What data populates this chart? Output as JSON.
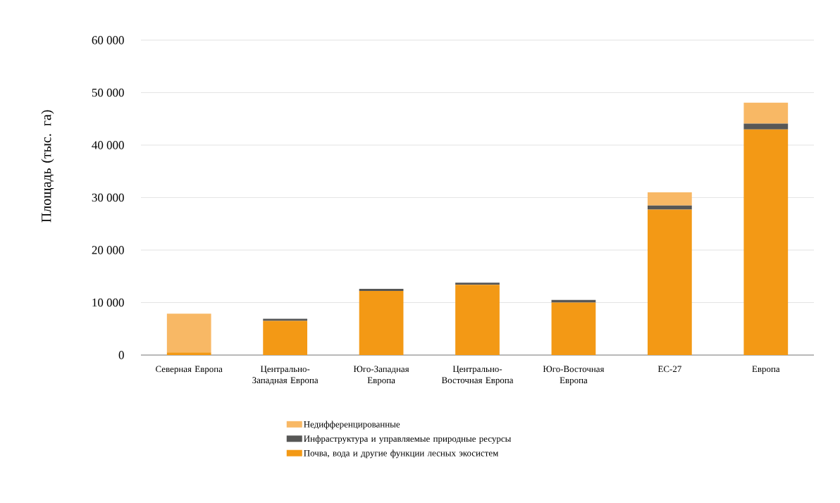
{
  "chart_data": {
    "type": "bar",
    "stacked": true,
    "ylabel": "Площадь (тыс. га)",
    "categories": [
      "Северная Европа",
      "Центрально-Западная Европа",
      "Юго-Западная Европа",
      "Центрально-Восточная Европа",
      "Юго-Восточная Европа",
      "ЕС-27",
      "Европа"
    ],
    "series": [
      {
        "name": "Почва, вода и другие функции лесных экосистем",
        "color": "#f39915",
        "values": [
          500,
          6500,
          12200,
          13400,
          10000,
          27700,
          43000
        ]
      },
      {
        "name": "Инфраструктура и управляемые природные ресурсы",
        "color": "#575756",
        "values": [
          0,
          400,
          400,
          400,
          500,
          800,
          1100
        ]
      },
      {
        "name": "Недифференцированные",
        "color": "#f8b865",
        "values": [
          7400,
          0,
          0,
          0,
          0,
          2500,
          4000
        ]
      }
    ],
    "ylim": [
      0,
      60000
    ],
    "yticks": [
      {
        "value": 0,
        "label": "0"
      },
      {
        "value": 10000,
        "label": "10 000"
      },
      {
        "value": 20000,
        "label": "20 000"
      },
      {
        "value": 30000,
        "label": "30 000"
      },
      {
        "value": 40000,
        "label": "40 000"
      },
      {
        "value": 50000,
        "label": "50 000"
      },
      {
        "value": 60000,
        "label": "60 000"
      }
    ],
    "grid": "y",
    "legend": "bottom"
  }
}
